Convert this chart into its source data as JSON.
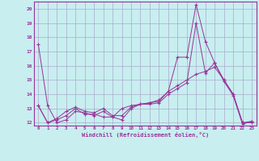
{
  "xlabel": "Windchill (Refroidissement éolien,°C)",
  "bg_color": "#c8eef0",
  "line_color": "#993399",
  "grid_color": "#aaaacc",
  "x_data": [
    0,
    1,
    2,
    3,
    4,
    5,
    6,
    7,
    8,
    9,
    10,
    11,
    12,
    13,
    14,
    15,
    16,
    17,
    18,
    19,
    20,
    21,
    22,
    23
  ],
  "series1": [
    17.5,
    13.2,
    12.0,
    12.2,
    12.8,
    12.7,
    12.5,
    12.8,
    12.4,
    13.0,
    13.2,
    13.3,
    13.4,
    13.5,
    14.2,
    16.6,
    16.6,
    20.3,
    17.7,
    16.2,
    14.9,
    13.9,
    11.9,
    12.1
  ],
  "series2": [
    13.2,
    12.0,
    12.3,
    12.8,
    13.1,
    12.8,
    12.7,
    13.0,
    12.5,
    12.5,
    13.1,
    13.3,
    13.4,
    13.6,
    14.2,
    14.6,
    15.0,
    15.4,
    15.6,
    15.9,
    15.0,
    14.0,
    12.0,
    12.1
  ],
  "series3": [
    13.2,
    12.0,
    12.2,
    12.5,
    13.0,
    12.6,
    12.6,
    12.4,
    12.4,
    12.2,
    13.0,
    13.3,
    13.3,
    13.4,
    14.0,
    14.4,
    14.8,
    19.0,
    15.5,
    16.2,
    15.0,
    14.0,
    12.0,
    12.0
  ],
  "ylim_min": 11.8,
  "ylim_max": 20.5,
  "xlim_min": -0.5,
  "xlim_max": 23.5,
  "yticks": [
    12,
    13,
    14,
    15,
    16,
    17,
    18,
    19,
    20
  ],
  "xticks": [
    0,
    1,
    2,
    3,
    4,
    5,
    6,
    7,
    8,
    9,
    10,
    11,
    12,
    13,
    14,
    15,
    16,
    17,
    18,
    19,
    20,
    21,
    22,
    23
  ]
}
